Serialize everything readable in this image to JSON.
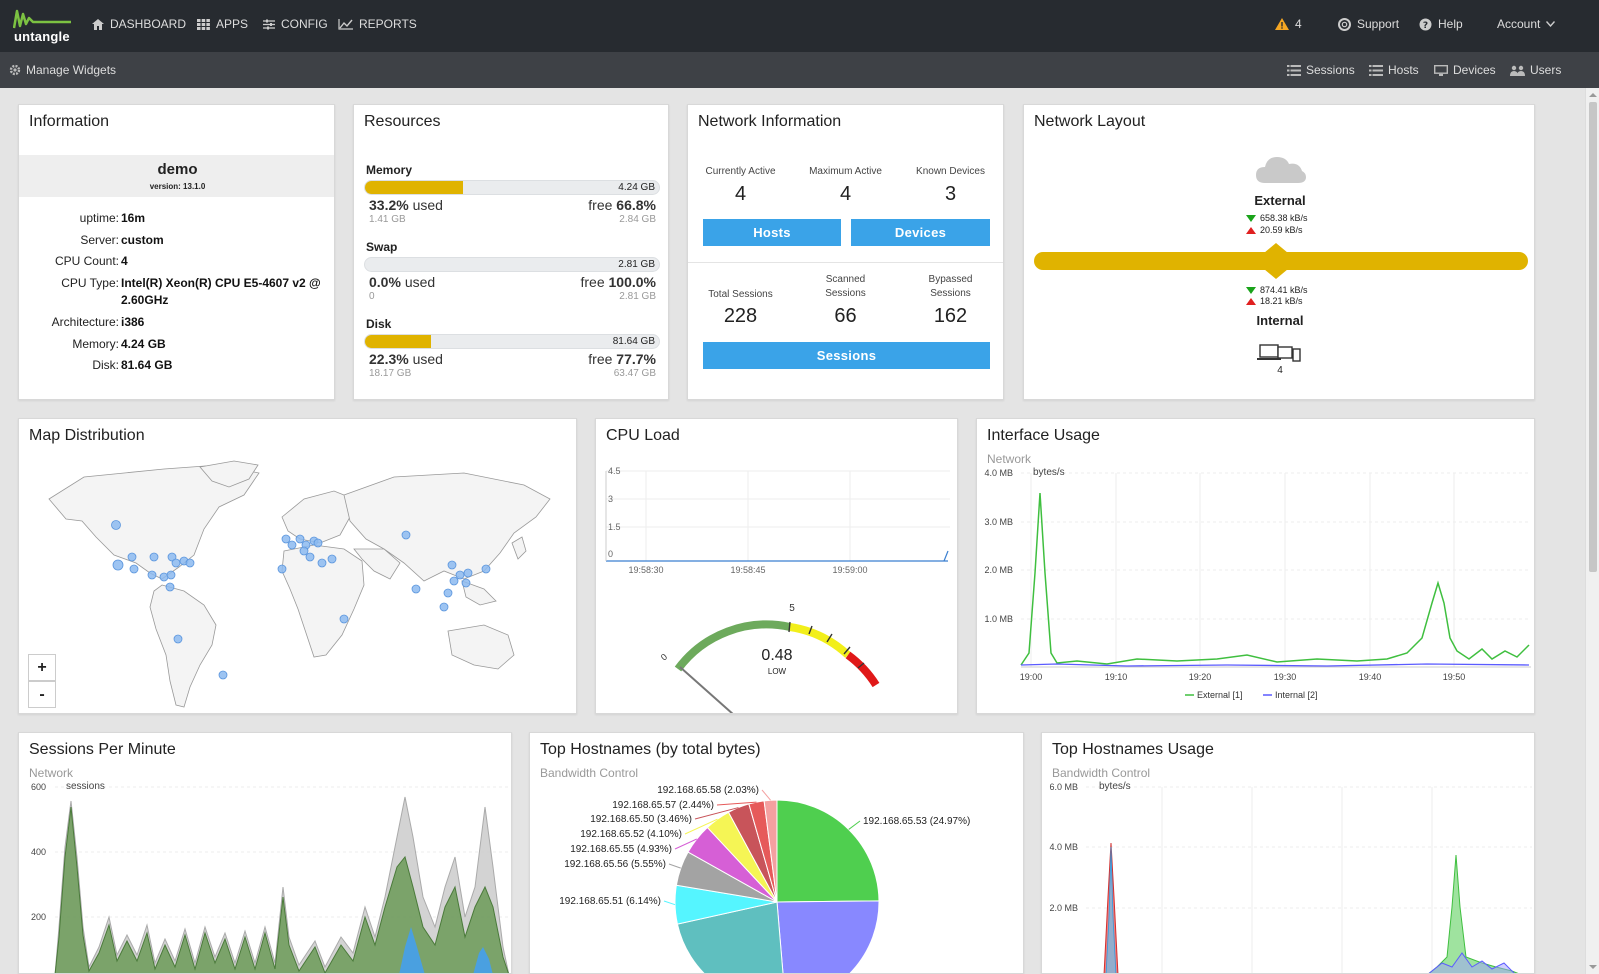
{
  "app": {
    "brand": "untangle"
  },
  "nav": {
    "dashboard": "DASHBOARD",
    "apps": "APPS",
    "config": "CONFIG",
    "reports": "REPORTS"
  },
  "header_right": {
    "alerts": "4",
    "support": "Support",
    "help": "Help",
    "account": "Account"
  },
  "subbar": {
    "manage_widgets": "Manage Widgets",
    "sessions": "Sessions",
    "hosts": "Hosts",
    "devices": "Devices",
    "users": "Users"
  },
  "information": {
    "title": "Information",
    "hostname": "demo",
    "version": "version: 13.1.0",
    "rows": [
      {
        "key": "uptime:",
        "value": "16m"
      },
      {
        "key": "Server:",
        "value": "custom"
      },
      {
        "key": "CPU Count:",
        "value": "4"
      },
      {
        "key": "CPU Type:",
        "value": "Intel(R) Xeon(R) CPU E5-4607 v2 @",
        "value2": "2.60GHz"
      },
      {
        "key": "Architecture:",
        "value": "i386"
      },
      {
        "key": "Memory:",
        "value": "4.24 GB"
      },
      {
        "key": "Disk:",
        "value": "81.64 GB"
      }
    ]
  },
  "resources": {
    "title": "Resources",
    "items": [
      {
        "name": "Memory",
        "total": "4.24 GB",
        "used_pct": "33.2%",
        "used_word": "used",
        "free_word": "free",
        "free_pct": "66.8%",
        "used_abs": "1.41 GB",
        "free_abs": "2.84 GB",
        "fraction": 0.332
      },
      {
        "name": "Swap",
        "total": "2.81 GB",
        "used_pct": "0.0%",
        "used_word": "used",
        "free_word": "free",
        "free_pct": "100.0%",
        "used_abs": "0",
        "free_abs": "2.81 GB",
        "fraction": 0.0
      },
      {
        "name": "Disk",
        "total": "81.64 GB",
        "used_pct": "22.3%",
        "used_word": "used",
        "free_word": "free",
        "free_pct": "77.7%",
        "used_abs": "18.17 GB",
        "free_abs": "63.47 GB",
        "fraction": 0.223
      }
    ],
    "bar_color": "#e0b300"
  },
  "network_info": {
    "title": "Network Information",
    "currently_active_label": "Currently Active",
    "currently_active": "4",
    "maximum_active_label": "Maximum Active",
    "maximum_active": "4",
    "known_devices_label": "Known Devices",
    "known_devices": "3",
    "hosts_btn": "Hosts",
    "devices_btn": "Devices",
    "total_sessions_label": "Total Sessions",
    "total_sessions": "228",
    "scanned_label_1": "Scanned",
    "scanned_label_2": "Sessions",
    "scanned": "66",
    "bypassed_label_1": "Bypassed",
    "bypassed_label_2": "Sessions",
    "bypassed": "162",
    "sessions_btn": "Sessions"
  },
  "network_layout": {
    "title": "Network Layout",
    "external": "External",
    "ext_down": "658.38 kB/s",
    "ext_up": "20.59 kB/s",
    "int_down": "874.41 kB/s",
    "int_up": "18.21 kB/s",
    "internal": "Internal",
    "device_count": "4"
  },
  "map": {
    "title": "Map Distribution",
    "zoom_in": "+",
    "zoom_out": "-"
  },
  "cpu_load": {
    "title": "CPU Load",
    "y_ticks": [
      "4.5",
      "3",
      "1.5",
      "0"
    ],
    "x_ticks": [
      "19:58:30",
      "19:58:45",
      "19:59:00"
    ],
    "gauge_min": "0",
    "gauge_mid": "5",
    "value": "0.48",
    "level": "LOW",
    "gauge_fraction": 0.048
  },
  "interface_usage": {
    "title": "Interface Usage",
    "subtitle": "Network",
    "unit": "bytes/s",
    "y_ticks": [
      "4.0 MB",
      "3.0 MB",
      "2.0 MB",
      "1.0 MB"
    ],
    "x_ticks": [
      "19:00",
      "19:10",
      "19:20",
      "19:30",
      "19:40",
      "19:50"
    ],
    "legend": [
      "External [1]",
      "Internal [2]"
    ],
    "colors": [
      "#3fbf3f",
      "#5b5bff"
    ]
  },
  "sessions_per_minute": {
    "title": "Sessions Per Minute",
    "subtitle": "Network",
    "unit": "sessions",
    "y_ticks": [
      "600",
      "400",
      "200"
    ]
  },
  "top_hostnames": {
    "title": "Top Hostnames (by total bytes)",
    "subtitle": "Bandwidth Control",
    "slices": [
      {
        "label": "192.168.65.53 (24.97%)",
        "value": 24.97,
        "color": "#4fcf4f"
      },
      {
        "label": "",
        "value": 24.0,
        "color": "#8888ff"
      },
      {
        "label": "",
        "value": 23.0,
        "color": "#5fbfbf"
      },
      {
        "label": "192.168.65.51 (6.14%)",
        "value": 6.14,
        "color": "#55f5ff"
      },
      {
        "label": "192.168.65.56 (5.55%)",
        "value": 5.55,
        "color": "#a3a3a3"
      },
      {
        "label": "192.168.65.55 (4.93%)",
        "value": 4.93,
        "color": "#d65fd6"
      },
      {
        "label": "192.168.65.52 (4.10%)",
        "value": 4.1,
        "color": "#f5f555"
      },
      {
        "label": "192.168.65.50 (3.46%)",
        "value": 3.46,
        "color": "#c8545a"
      },
      {
        "label": "192.168.65.57 (2.44%)",
        "value": 2.44,
        "color": "#e65a5a"
      },
      {
        "label": "192.168.65.58 (2.03%)",
        "value": 2.03,
        "color": "#f4a0a0"
      }
    ]
  },
  "top_hostnames_usage": {
    "title": "Top Hostnames Usage",
    "subtitle": "Bandwidth Control",
    "unit": "bytes/s",
    "y_ticks": [
      "6.0 MB",
      "4.0 MB",
      "2.0 MB"
    ]
  }
}
